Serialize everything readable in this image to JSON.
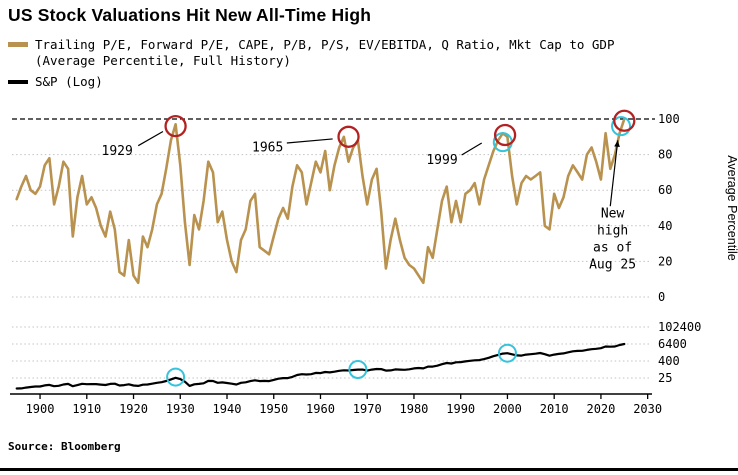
{
  "title": "US Stock Valuations Hit New All-Time High",
  "legend": {
    "valuations_line1": "Trailing P/E, Forward P/E, CAPE, P/B, P/S, EV/EBITDA, Q Ratio, Mkt Cap to GDP",
    "valuations_line2": "(Average Percentile, Full History)",
    "valuations_color": "#b8924e",
    "sp_label": "S&P (Log)",
    "sp_color": "#000000"
  },
  "source": "Source: Bloomberg",
  "chart_data": {
    "type": "line",
    "x_label_ticks": [
      1900,
      1910,
      1920,
      1930,
      1940,
      1950,
      1960,
      1970,
      1980,
      1990,
      2000,
      2010,
      2020,
      2030
    ],
    "xlim": [
      1894,
      2030.5
    ],
    "panels": [
      {
        "id": "valuations",
        "ylabel": "Average Percentile",
        "ylim": [
          0,
          100
        ],
        "yticks": [
          100,
          80,
          60,
          40,
          20,
          0
        ],
        "highlight_line": 100,
        "series": [
          {
            "name": "Average Valuation Percentile",
            "color": "#b8924e",
            "year_start": 1895,
            "step": 1,
            "values": [
              55,
              62,
              68,
              60,
              58,
              62,
              74,
              78,
              52,
              62,
              76,
              72,
              34,
              56,
              68,
              52,
              56,
              50,
              40,
              34,
              48,
              38,
              14,
              12,
              32,
              12,
              8,
              34,
              28,
              38,
              52,
              58,
              72,
              88,
              97,
              74,
              42,
              18,
              46,
              38,
              54,
              76,
              70,
              42,
              48,
              32,
              20,
              14,
              32,
              38,
              54,
              58,
              28,
              26,
              24,
              34,
              44,
              50,
              44,
              62,
              74,
              70,
              52,
              64,
              76,
              70,
              82,
              60,
              74,
              84,
              90,
              76,
              84,
              88,
              68,
              52,
              66,
              72,
              48,
              16,
              32,
              44,
              32,
              22,
              18,
              16,
              12,
              8,
              28,
              22,
              38,
              54,
              62,
              42,
              54,
              42,
              58,
              60,
              64,
              52,
              66,
              74,
              82,
              88,
              92,
              90,
              68,
              52,
              64,
              68,
              66,
              68,
              70,
              40,
              38,
              58,
              50,
              56,
              68,
              74,
              70,
              66,
              80,
              84,
              76,
              66,
              92,
              72,
              80,
              92,
              100
            ]
          }
        ],
        "secondary_circles": {
          "color": "#35c4dc",
          "points": [
            {
              "year": 1999,
              "value": 87
            },
            {
              "year": 2024.3,
              "value": 96
            }
          ]
        },
        "peak_circles": {
          "color": "#b22222",
          "points": [
            {
              "year": 1929,
              "value": 96
            },
            {
              "year": 1966,
              "value": 90
            },
            {
              "year": 1999.5,
              "value": 91
            },
            {
              "year": 2025,
              "value": 99
            }
          ]
        },
        "annotations": [
          {
            "text": "1929",
            "year": 1916.5,
            "value": 82
          },
          {
            "text": "1965",
            "year": 1948.7,
            "value": 84
          },
          {
            "text": "1999",
            "year": 1986.0,
            "value": 77
          },
          {
            "text": [
              "New",
              "high",
              "as of",
              "Aug 25"
            ],
            "year": 2022.5,
            "value": 47
          }
        ],
        "leaders": [
          {
            "x1": 1921.0,
            "v1": 85.0,
            "x2": 1926.3,
            "v2": 93.0,
            "arrow": false
          },
          {
            "x1": 1952.8,
            "v1": 86.5,
            "x2": 1962.6,
            "v2": 88.8,
            "arrow": false
          },
          {
            "x1": 1990.2,
            "v1": 79.8,
            "x2": 1994.5,
            "v2": 86.5,
            "arrow": false
          },
          {
            "x1": 2022.0,
            "v1": 51.0,
            "x2": 2023.6,
            "v2": 88.0,
            "arrow": true
          }
        ]
      },
      {
        "id": "sp-log",
        "scale": "log",
        "yticks": [
          102400,
          6400,
          400,
          25
        ],
        "series": [
          {
            "name": "S&P (Log)",
            "color": "#000000",
            "year_start": 1895,
            "step": 1,
            "values": [
              4.5,
              4.6,
              5.2,
              5.8,
              6.2,
              6.2,
              7.5,
              8.1,
              6.6,
              7.0,
              8.7,
              9.5,
              6.6,
              7.9,
              9.7,
              9.1,
              9.2,
              9.3,
              8.5,
              8.0,
              9.5,
              9.8,
              7.4,
              7.9,
              8.9,
              7.3,
              6.9,
              8.4,
              8.6,
              9.8,
              11.5,
              12.6,
              15.3,
              19.9,
              26.0,
              21.0,
              13.7,
              6.9,
              9.0,
              9.5,
              10.6,
              15.5,
              15.4,
              11.5,
              12.1,
              11.0,
              9.8,
              8.7,
              11.5,
              12.5,
              15.2,
              17.1,
              15.2,
              15.5,
              15.2,
              18.4,
              22.3,
              24.5,
              24.7,
              30.0,
              40.5,
              46.6,
              44.4,
              46.2,
              57.4,
              55.8,
              66.3,
              62.4,
              69.9,
              81.4,
              88.2,
              85.3,
              91.9,
              98.7,
              97.8,
              83.2,
              98.3,
              109.2,
              107.4,
              82.9,
              86.2,
              102.0,
              98.2,
              96.0,
              103.0,
              118.8,
              128.0,
              119.7,
              160.4,
              160.5,
              186.8,
              236.1,
              286.6,
              265.8,
              322.8,
              334.6,
              376.2,
              415.7,
              451.4,
              460.4,
              541.7,
              670.5,
              873.4,
              1085.5,
              1327.3,
              1427.2,
              1194.2,
              993.9,
              965.2,
              1130.7,
              1207.2,
              1310.5,
              1477.2,
              1220.0,
              948.1,
              1139.0,
              1267.6,
              1379.4,
              1643.8,
              1931.4,
              2061.1,
              2094.7,
              2449.1,
              2746.2,
              2913.4,
              3218.5,
              4273.4,
              4098.5,
              4283.7,
              5427.0,
              6400
            ]
          }
        ],
        "peak_circles": {
          "color": "#35c4dc",
          "points": [
            {
              "year": 1929,
              "value": 29
            },
            {
              "year": 1968,
              "value": 100
            },
            {
              "year": 2000,
              "value": 1430
            }
          ]
        }
      }
    ]
  }
}
